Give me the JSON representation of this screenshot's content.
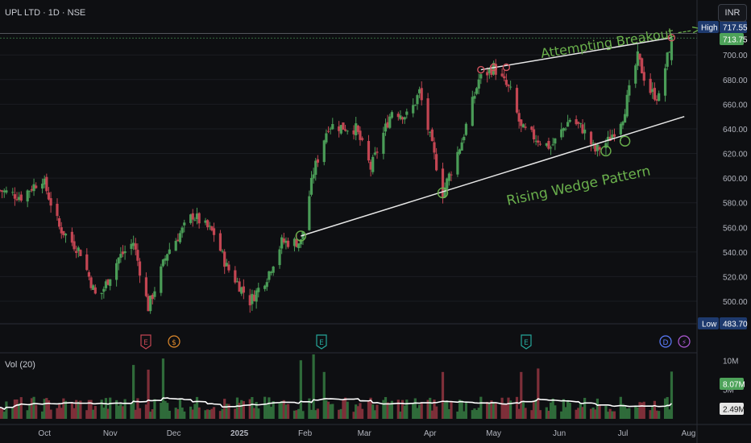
{
  "symbol_title": "UPL LTD · 1D · NSE",
  "currency": "INR",
  "volume_title": "Vol (20)",
  "price_axis": {
    "ticks": [
      500,
      520,
      540,
      560,
      580,
      600,
      620,
      640,
      660,
      680,
      700
    ],
    "tick_labels": [
      "500.00",
      "520.00",
      "540.00",
      "560.00",
      "580.00",
      "600.00",
      "620.00",
      "640.00",
      "660.00",
      "680.00",
      "700.00"
    ],
    "ylim": [
      483,
      725
    ]
  },
  "volume_axis": {
    "ticks": [
      5,
      10
    ],
    "tick_labels": [
      "5M",
      "10M"
    ],
    "unit": "M",
    "ylim": [
      0,
      11
    ]
  },
  "time_axis": {
    "labels": [
      "Oct",
      "Nov",
      "Dec",
      "2025",
      "Feb",
      "Mar",
      "Apr",
      "May",
      "Jun",
      "Jul",
      "Aug"
    ]
  },
  "badges": {
    "high_label": "High",
    "high_value": "717.55",
    "last_value": "713.75",
    "low_label": "Low",
    "low_value": "483.70",
    "vol_value": "8.07M",
    "vol_ma_value": "2.49M"
  },
  "annotations": {
    "breakout": "Attempting Breakout --->",
    "wedge": "Rising Wedge Pattern"
  },
  "event_markers": [
    "E",
    "$",
    "E",
    "E",
    "D",
    "⚡"
  ],
  "colors": {
    "background": "#0e0f12",
    "up": "#4a9c57",
    "down": "#c24552",
    "annotation": "#6ab04c",
    "wedge_line": "#e8e8e8",
    "volume_ma": "#ffffff",
    "last_badge": "#4ea35a",
    "high_badge": "#1e3a6e",
    "low_badge": "#1e3a6e"
  },
  "chart_data": {
    "type": "candlestick",
    "series": [
      {
        "name": "UPL LTD",
        "kind": "ohlc"
      },
      {
        "name": "Vol (20)",
        "kind": "volume"
      }
    ],
    "ohlc_anchors": [
      [
        "2024-09-10",
        590
      ],
      [
        "2024-09-20",
        585
      ],
      [
        "2024-09-30",
        600
      ],
      [
        "2024-10-08",
        560
      ],
      [
        "2024-10-18",
        540
      ],
      [
        "2024-10-26",
        500
      ],
      [
        "2024-11-05",
        535
      ],
      [
        "2024-11-12",
        548
      ],
      [
        "2024-11-19",
        495
      ],
      [
        "2024-11-28",
        540
      ],
      [
        "2024-12-10",
        570
      ],
      [
        "2024-12-20",
        555
      ],
      [
        "2024-12-26",
        528
      ],
      [
        "2025-01-06",
        500
      ],
      [
        "2025-01-14",
        520
      ],
      [
        "2025-01-21",
        548
      ],
      [
        "2025-01-30",
        548
      ],
      [
        "2025-02-05",
        605
      ],
      [
        "2025-02-12",
        643
      ],
      [
        "2025-02-25",
        640
      ],
      [
        "2025-03-04",
        608
      ],
      [
        "2025-03-14",
        655
      ],
      [
        "2025-03-22",
        650
      ],
      [
        "2025-03-27",
        670
      ],
      [
        "2025-04-07",
        588
      ],
      [
        "2025-04-16",
        630
      ],
      [
        "2025-04-24",
        680
      ],
      [
        "2025-05-01",
        690
      ],
      [
        "2025-05-09",
        670
      ],
      [
        "2025-05-14",
        640
      ],
      [
        "2025-05-28",
        625
      ],
      [
        "2025-06-06",
        648
      ],
      [
        "2025-06-12",
        640
      ],
      [
        "2025-06-18",
        622
      ],
      [
        "2025-06-24",
        630
      ],
      [
        "2025-07-01",
        650
      ],
      [
        "2025-07-08",
        698
      ],
      [
        "2025-07-13",
        672
      ],
      [
        "2025-07-18",
        665
      ],
      [
        "2025-07-21",
        690
      ],
      [
        "2025-07-24",
        713.75
      ]
    ],
    "high": 717.55,
    "low": 483.7,
    "last": 713.75,
    "volume_last_m": 8.07,
    "volume_ma_m": 2.49,
    "volume_spikes": [
      [
        "2024-11-12",
        9.2
      ],
      [
        "2024-11-19",
        8.4
      ],
      [
        "2024-11-26",
        10.3
      ],
      [
        "2025-01-30",
        10.0
      ],
      [
        "2025-02-05",
        11.0
      ],
      [
        "2025-02-10",
        8.0
      ],
      [
        "2025-04-07",
        8.0
      ],
      [
        "2025-05-14",
        8.0
      ],
      [
        "2025-05-22",
        8.6
      ],
      [
        "2025-07-20",
        7.6
      ],
      [
        "2025-07-24",
        8.07
      ]
    ],
    "trendlines": [
      {
        "name": "upper",
        "from": [
          "2025-04-25",
          688
        ],
        "to": [
          "2025-07-24",
          714
        ]
      },
      {
        "name": "lower",
        "from": [
          "2025-01-30",
          553
        ],
        "to": [
          "2025-07-30",
          650
        ]
      }
    ],
    "pivot_points": [
      [
        "2025-01-30",
        553
      ],
      [
        "2025-04-07",
        588
      ],
      [
        "2025-06-23",
        622
      ],
      [
        "2025-07-02",
        630
      ],
      [
        "2025-04-25",
        688
      ],
      [
        "2025-05-01",
        690
      ],
      [
        "2025-05-07",
        690
      ],
      [
        "2025-07-24",
        714
      ]
    ],
    "xlim": [
      "2024-09-10",
      "2025-08-05"
    ]
  }
}
